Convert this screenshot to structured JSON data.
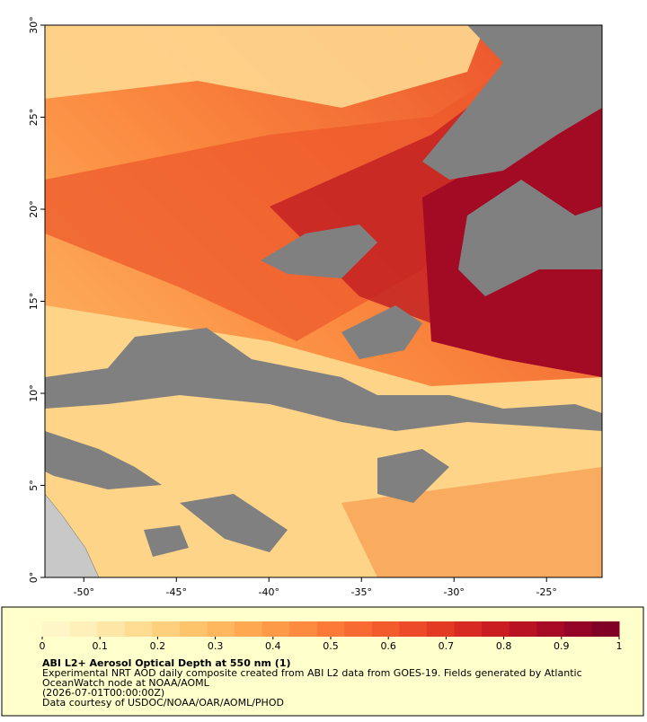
{
  "map": {
    "xlim": [
      -52.1,
      -22.0
    ],
    "ylim": [
      0,
      30
    ],
    "xticks": [
      {
        "value": -50,
        "label": "-50°"
      },
      {
        "value": -45,
        "label": "-45°"
      },
      {
        "value": -40,
        "label": "-40°"
      },
      {
        "value": -35,
        "label": "-35°"
      },
      {
        "value": -30,
        "label": "-30°"
      },
      {
        "value": -25,
        "label": "-25°"
      }
    ],
    "yticks": [
      {
        "value": 0,
        "label": "0°"
      },
      {
        "value": 5,
        "label": "5°"
      },
      {
        "value": 10,
        "label": "10°"
      },
      {
        "value": 15,
        "label": "15°"
      },
      {
        "value": 20,
        "label": "20°"
      },
      {
        "value": 25,
        "label": "25°"
      },
      {
        "value": 30,
        "label": "30°"
      }
    ]
  },
  "legend": {
    "title": "ABI L2+ Aerosol Optical Depth at 550 nm (1)",
    "description": [
      "Experimental NRT AOD daily composite created from ABI L2 data from GOES-19. Fields generated by Atlantic",
      "OceanWatch node at NOAA/AOML",
      "(2026-07-01T00:00:00Z)",
      "Data courtesy of USDOC/NOAA/OAR/AOML/PHOD"
    ],
    "colorbar": {
      "lim": [
        0,
        1
      ],
      "ticks": [
        0,
        0.1,
        0.2,
        0.3,
        0.4,
        0.5,
        0.6,
        0.7,
        0.8,
        0.9,
        1
      ],
      "colors": [
        "#fff6c8",
        "#ffefb8",
        "#fee6a6",
        "#fedc92",
        "#fed07e",
        "#fec46c",
        "#feb75e",
        "#fea952",
        "#fd9a48",
        "#fc8a3f",
        "#fb7a38",
        "#f86a32",
        "#f35a2c",
        "#ec4a28",
        "#e33a24",
        "#d72a22",
        "#c91d22",
        "#b91222",
        "#a60a24",
        "#930426",
        "#800026"
      ]
    }
  }
}
